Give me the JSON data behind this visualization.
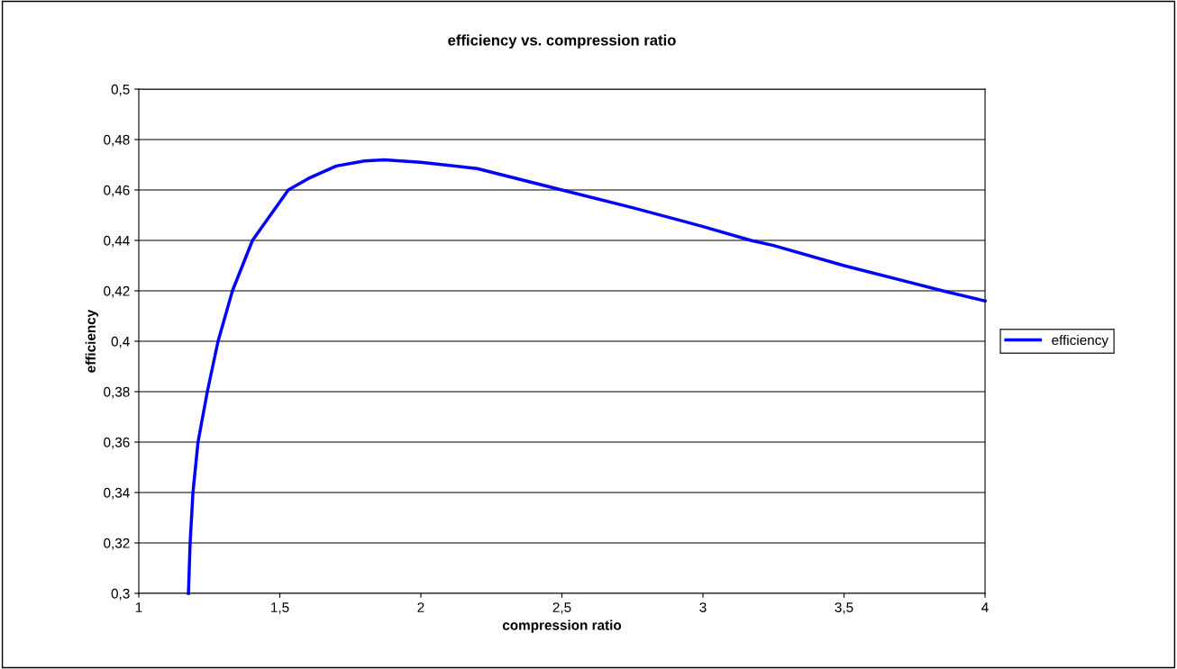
{
  "chart_data": {
    "type": "line",
    "title": "efficiency vs. compression ratio",
    "xlabel": "compression ratio",
    "ylabel": "efficiency",
    "xlim": [
      1,
      4
    ],
    "xticks": [
      {
        "value": 1,
        "label": "1"
      },
      {
        "value": 1.5,
        "label": "1,5"
      },
      {
        "value": 2,
        "label": "2"
      },
      {
        "value": 2.5,
        "label": "2,5"
      },
      {
        "value": 3,
        "label": "3"
      },
      {
        "value": 3.5,
        "label": "3,5"
      },
      {
        "value": 4,
        "label": "4"
      }
    ],
    "ylim": [
      0.3,
      0.5
    ],
    "yticks": [
      {
        "value": 0.3,
        "label": "0,3"
      },
      {
        "value": 0.32,
        "label": "0,32"
      },
      {
        "value": 0.34,
        "label": "0,34"
      },
      {
        "value": 0.36,
        "label": "0,36"
      },
      {
        "value": 0.38,
        "label": "0,38"
      },
      {
        "value": 0.4,
        "label": "0,4"
      },
      {
        "value": 0.42,
        "label": "0,42"
      },
      {
        "value": 0.44,
        "label": "0,44"
      },
      {
        "value": 0.46,
        "label": "0,46"
      },
      {
        "value": 0.48,
        "label": "0,48"
      },
      {
        "value": 0.5,
        "label": "0,5"
      }
    ],
    "grid": "y",
    "legend": "right",
    "marker": "none",
    "line_style": "solid",
    "series": [
      {
        "name": "efficiency",
        "color": "#0000ff",
        "x": [
          1.176,
          1.182,
          1.192,
          1.21,
          1.243,
          1.281,
          1.332,
          1.403,
          1.53,
          1.6,
          1.7,
          1.8,
          1.87,
          2.0,
          2.2,
          2.5,
          2.75,
          3.0,
          3.17,
          3.25,
          3.5,
          3.85,
          4.0
        ],
        "values": [
          0.3,
          0.32,
          0.34,
          0.36,
          0.38,
          0.4,
          0.42,
          0.44,
          0.46,
          0.4645,
          0.4695,
          0.4715,
          0.472,
          0.471,
          0.4685,
          0.46,
          0.453,
          0.4455,
          0.44,
          0.438,
          0.43,
          0.42,
          0.416
        ]
      }
    ]
  }
}
